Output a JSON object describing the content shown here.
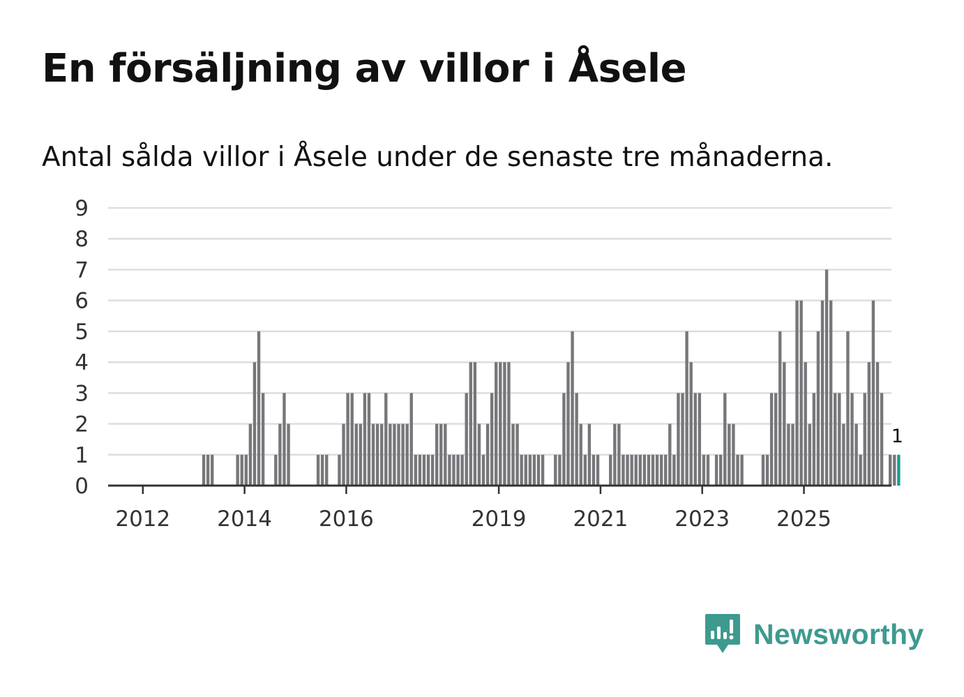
{
  "title": "En försäljning av villor i Åsele",
  "subtitle": "Antal sålda villor i Åsele under de senaste tre månaderna.",
  "brand": {
    "name": "Newsworthy",
    "icon": "newsworthy-logo-icon"
  },
  "colors": {
    "bar": "#77777b",
    "highlight": "#1a9c94",
    "grid": "#dddddd",
    "axis": "#333333",
    "brand": "#3e9a8f"
  },
  "chart_data": {
    "type": "bar",
    "title": "En försäljning av villor i Åsele",
    "xlabel": "",
    "ylabel": "",
    "ylim": [
      0,
      9
    ],
    "yticks": [
      "0",
      "1",
      "2",
      "3",
      "4",
      "5",
      "6",
      "7",
      "8",
      "9"
    ],
    "grid": true,
    "x_start": "2011-09",
    "xticks": [
      {
        "label": "2012",
        "month_index": 4
      },
      {
        "label": "2014",
        "month_index": 28
      },
      {
        "label": "2016",
        "month_index": 52
      },
      {
        "label": "2019",
        "month_index": 88
      },
      {
        "label": "2021",
        "month_index": 112
      },
      {
        "label": "2023",
        "month_index": 136
      },
      {
        "label": "2025",
        "month_index": 160
      }
    ],
    "values": [
      0,
      0,
      0,
      0,
      0,
      0,
      0,
      0,
      0,
      0,
      0,
      0,
      0,
      0,
      0,
      0,
      0,
      0,
      1,
      1,
      1,
      0,
      0,
      0,
      0,
      0,
      1,
      1,
      1,
      2,
      4,
      5,
      3,
      0,
      0,
      1,
      2,
      3,
      2,
      0,
      0,
      0,
      0,
      0,
      0,
      1,
      1,
      1,
      0,
      0,
      1,
      2,
      3,
      3,
      2,
      2,
      3,
      3,
      2,
      2,
      2,
      3,
      2,
      2,
      2,
      2,
      2,
      3,
      1,
      1,
      1,
      1,
      1,
      2,
      2,
      2,
      1,
      1,
      1,
      1,
      3,
      4,
      4,
      2,
      1,
      2,
      3,
      4,
      4,
      4,
      4,
      2,
      2,
      1,
      1,
      1,
      1,
      1,
      1,
      0,
      0,
      1,
      1,
      3,
      4,
      5,
      3,
      2,
      1,
      2,
      1,
      1,
      0,
      0,
      1,
      2,
      2,
      1,
      1,
      1,
      1,
      1,
      1,
      1,
      1,
      1,
      1,
      1,
      2,
      1,
      3,
      3,
      5,
      4,
      3,
      3,
      1,
      1,
      0,
      1,
      1,
      3,
      2,
      2,
      1,
      1,
      0,
      0,
      0,
      0,
      1,
      1,
      3,
      3,
      5,
      4,
      2,
      2,
      6,
      6,
      4,
      2,
      3,
      5,
      6,
      7,
      6,
      3,
      3,
      2,
      5,
      3,
      2,
      1,
      3,
      4,
      6,
      4,
      3,
      0,
      1,
      1,
      1
    ],
    "highlight": {
      "index": 182,
      "label": "1"
    }
  }
}
